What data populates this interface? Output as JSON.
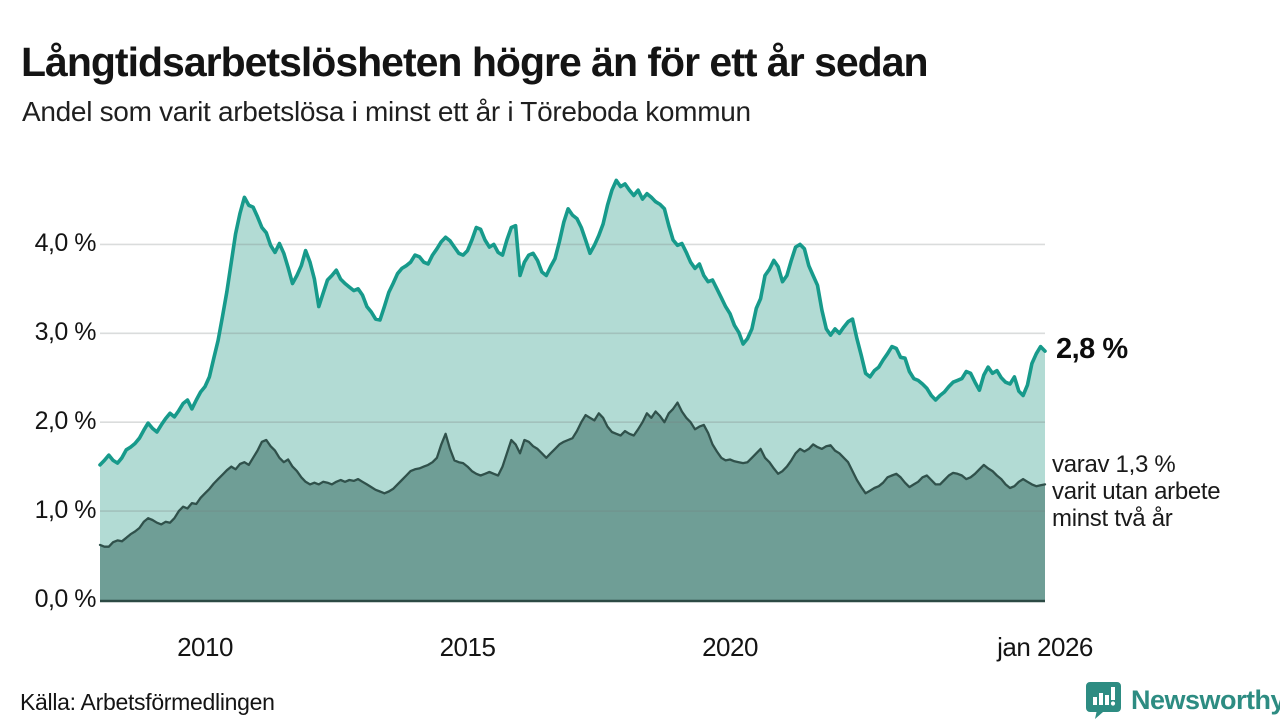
{
  "header": {
    "title": "Långtidsarbetslösheten högre än för ett år sedan",
    "subtitle": "Andel som varit arbetslösa i minst ett år i Töreboda kommun"
  },
  "annotations": {
    "end_value_label": "2,8 %",
    "secondary_line1": "varav 1,3 %",
    "secondary_line2": "varit utan arbete",
    "secondary_line3": "minst två år"
  },
  "footer": {
    "source": "Källa: Arbetsförmedlingen",
    "brand": "Newsworthy"
  },
  "colors": {
    "series1_line": "#179a8b",
    "series1_fill": "#b2dbd4",
    "series2_line": "#30514b",
    "series2_fill": "#6f9e96",
    "axis_line": "#2c4a44",
    "gridline": "#787e7e",
    "brand_teal": "#2d8c82",
    "text": "#141414"
  },
  "chart_data": {
    "type": "area",
    "title": "Långtidsarbetslösheten högre än för ett år sedan",
    "subtitle": "Andel som varit arbetslösa i minst ett år i Töreboda kommun",
    "unit": "%",
    "frequency": "monthly",
    "x_start": "2008-01",
    "x_end": "2026-01",
    "ylim": [
      0,
      4.8
    ],
    "grid": "horizontal",
    "legend_position": "none",
    "y_ticks": [
      {
        "value": 0,
        "label": "0,0 %"
      },
      {
        "value": 1,
        "label": "1,0 %"
      },
      {
        "value": 2,
        "label": "2,0 %"
      },
      {
        "value": 3,
        "label": "3,0 %"
      },
      {
        "value": 4,
        "label": "4,0 %"
      }
    ],
    "x_ticks": [
      {
        "month_index": 24,
        "label": "2010"
      },
      {
        "month_index": 84,
        "label": "2015"
      },
      {
        "month_index": 144,
        "label": "2020"
      },
      {
        "month_index": 216,
        "label": "jan 2026"
      }
    ],
    "series": [
      {
        "name": "Andel arbetslösa minst ett år",
        "end_value": 2.8,
        "values": [
          1.52,
          1.57,
          1.63,
          1.57,
          1.54,
          1.6,
          1.69,
          1.72,
          1.76,
          1.82,
          1.91,
          1.99,
          1.93,
          1.89,
          1.97,
          2.04,
          2.1,
          2.06,
          2.13,
          2.21,
          2.25,
          2.15,
          2.25,
          2.34,
          2.4,
          2.51,
          2.72,
          2.92,
          3.19,
          3.47,
          3.8,
          4.12,
          4.35,
          4.53,
          4.44,
          4.42,
          4.31,
          4.19,
          4.13,
          3.99,
          3.91,
          4.01,
          3.9,
          3.74,
          3.56,
          3.65,
          3.76,
          3.93,
          3.8,
          3.61,
          3.3,
          3.45,
          3.6,
          3.65,
          3.71,
          3.61,
          3.56,
          3.52,
          3.48,
          3.5,
          3.43,
          3.3,
          3.24,
          3.16,
          3.15,
          3.3,
          3.46,
          3.56,
          3.67,
          3.73,
          3.76,
          3.8,
          3.88,
          3.86,
          3.8,
          3.78,
          3.88,
          3.95,
          4.03,
          4.08,
          4.04,
          3.97,
          3.9,
          3.88,
          3.93,
          4.05,
          4.19,
          4.17,
          4.05,
          3.97,
          4.0,
          3.91,
          3.88,
          4.05,
          4.19,
          4.21,
          3.65,
          3.8,
          3.88,
          3.9,
          3.82,
          3.69,
          3.65,
          3.75,
          3.84,
          4.03,
          4.25,
          4.4,
          4.33,
          4.29,
          4.19,
          4.05,
          3.9,
          3.99,
          4.1,
          4.23,
          4.44,
          4.61,
          4.72,
          4.65,
          4.68,
          4.61,
          4.55,
          4.61,
          4.51,
          4.57,
          4.53,
          4.48,
          4.45,
          4.4,
          4.21,
          4.05,
          3.99,
          4.01,
          3.91,
          3.8,
          3.73,
          3.78,
          3.65,
          3.58,
          3.6,
          3.5,
          3.4,
          3.3,
          3.22,
          3.09,
          3.01,
          2.88,
          2.94,
          3.05,
          3.28,
          3.39,
          3.65,
          3.72,
          3.82,
          3.75,
          3.58,
          3.65,
          3.82,
          3.97,
          4.0,
          3.95,
          3.76,
          3.65,
          3.54,
          3.26,
          3.05,
          2.98,
          3.05,
          3.0,
          3.07,
          3.13,
          3.16,
          2.94,
          2.75,
          2.55,
          2.51,
          2.58,
          2.62,
          2.7,
          2.77,
          2.85,
          2.83,
          2.73,
          2.72,
          2.57,
          2.49,
          2.47,
          2.43,
          2.38,
          2.3,
          2.25,
          2.3,
          2.34,
          2.4,
          2.45,
          2.47,
          2.49,
          2.57,
          2.55,
          2.45,
          2.36,
          2.53,
          2.62,
          2.55,
          2.58,
          2.5,
          2.45,
          2.43,
          2.51,
          2.35,
          2.3,
          2.42,
          2.66,
          2.77,
          2.85,
          2.8
        ]
      },
      {
        "name": "varav arbetslösa minst två år",
        "end_value": 1.3,
        "values": [
          0.62,
          0.6,
          0.6,
          0.65,
          0.67,
          0.66,
          0.7,
          0.74,
          0.77,
          0.81,
          0.88,
          0.92,
          0.9,
          0.87,
          0.85,
          0.88,
          0.87,
          0.92,
          1.0,
          1.05,
          1.03,
          1.09,
          1.08,
          1.15,
          1.2,
          1.25,
          1.31,
          1.36,
          1.41,
          1.46,
          1.5,
          1.47,
          1.53,
          1.55,
          1.52,
          1.6,
          1.68,
          1.78,
          1.8,
          1.73,
          1.68,
          1.6,
          1.55,
          1.58,
          1.5,
          1.45,
          1.38,
          1.33,
          1.3,
          1.32,
          1.3,
          1.33,
          1.32,
          1.3,
          1.33,
          1.35,
          1.33,
          1.35,
          1.34,
          1.36,
          1.33,
          1.3,
          1.27,
          1.24,
          1.22,
          1.2,
          1.22,
          1.25,
          1.3,
          1.35,
          1.4,
          1.45,
          1.47,
          1.48,
          1.5,
          1.52,
          1.55,
          1.6,
          1.75,
          1.87,
          1.7,
          1.57,
          1.55,
          1.54,
          1.5,
          1.45,
          1.42,
          1.4,
          1.42,
          1.44,
          1.42,
          1.4,
          1.5,
          1.65,
          1.8,
          1.75,
          1.65,
          1.8,
          1.78,
          1.73,
          1.7,
          1.65,
          1.6,
          1.65,
          1.7,
          1.75,
          1.78,
          1.8,
          1.82,
          1.9,
          2.0,
          2.08,
          2.05,
          2.02,
          2.1,
          2.05,
          1.95,
          1.89,
          1.87,
          1.85,
          1.9,
          1.87,
          1.85,
          1.92,
          2.0,
          2.1,
          2.05,
          2.12,
          2.07,
          2.0,
          2.1,
          2.15,
          2.22,
          2.12,
          2.05,
          2.0,
          1.92,
          1.95,
          1.97,
          1.88,
          1.75,
          1.67,
          1.6,
          1.57,
          1.58,
          1.56,
          1.55,
          1.54,
          1.55,
          1.6,
          1.65,
          1.7,
          1.6,
          1.55,
          1.48,
          1.42,
          1.45,
          1.5,
          1.57,
          1.65,
          1.7,
          1.67,
          1.7,
          1.75,
          1.72,
          1.7,
          1.73,
          1.74,
          1.68,
          1.65,
          1.6,
          1.55,
          1.45,
          1.35,
          1.27,
          1.2,
          1.23,
          1.26,
          1.28,
          1.32,
          1.38,
          1.4,
          1.42,
          1.38,
          1.32,
          1.27,
          1.3,
          1.33,
          1.38,
          1.4,
          1.35,
          1.3,
          1.3,
          1.35,
          1.4,
          1.43,
          1.42,
          1.4,
          1.36,
          1.38,
          1.42,
          1.47,
          1.52,
          1.48,
          1.45,
          1.4,
          1.36,
          1.3,
          1.26,
          1.28,
          1.33,
          1.36,
          1.33,
          1.3,
          1.28,
          1.29,
          1.3
        ]
      }
    ]
  }
}
